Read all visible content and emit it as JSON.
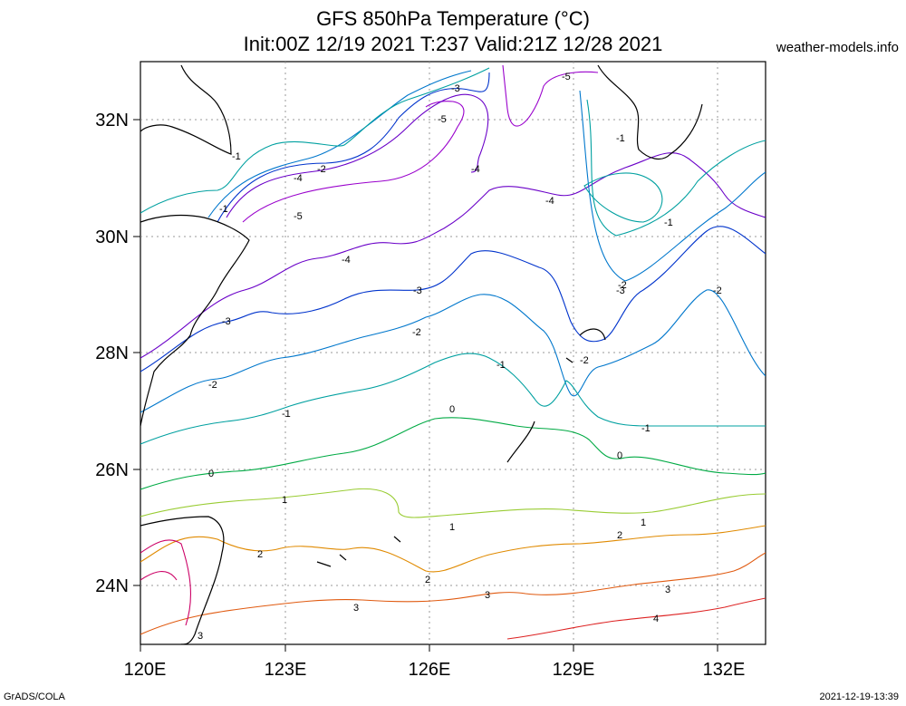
{
  "title": {
    "line1": "GFS 850hPa Temperature (°C)",
    "line2": "Init:00Z 12/19 2021 T:237 Valid:21Z 12/28 2021"
  },
  "site": "weather-models.info",
  "footer": {
    "left": "GrADS/COLA",
    "right": "2021-12-19-13:39"
  },
  "axes": {
    "x_ticks": [
      "120E",
      "123E",
      "126E",
      "129E",
      "132E"
    ],
    "y_ticks": [
      "32N",
      "30N",
      "28N",
      "26N",
      "24N"
    ]
  },
  "contours": [
    {
      "value": -5,
      "color": "#9900cc",
      "labels": [
        "-5",
        "-5",
        "-5"
      ]
    },
    {
      "value": -4,
      "color": "#6a00c8",
      "labels": [
        "-4",
        "-4",
        "-4",
        "-4"
      ]
    },
    {
      "value": -3,
      "color": "#0033cc",
      "labels": [
        "-3",
        "-3",
        "-3",
        "-3"
      ]
    },
    {
      "value": -2,
      "color": "#0077cc",
      "labels": [
        "-2",
        "-2",
        "-2",
        "-2",
        "-2",
        "-2"
      ]
    },
    {
      "value": -1,
      "color": "#00a0a0",
      "labels": [
        "-1",
        "-1",
        "-1",
        "-1",
        "-1",
        "-1",
        "-1"
      ]
    },
    {
      "value": 0,
      "color": "#00aa44",
      "labels": [
        "0",
        "0",
        "0"
      ]
    },
    {
      "value": 1,
      "color": "#99cc33",
      "labels": [
        "1",
        "1",
        "1"
      ]
    },
    {
      "value": 2,
      "color": "#e08a00",
      "labels": [
        "2",
        "2",
        "2"
      ]
    },
    {
      "value": 3,
      "color": "#e05a10",
      "labels": [
        "3",
        "3",
        "3",
        "3"
      ]
    },
    {
      "value": 4,
      "color": "#dd2222",
      "labels": [
        "4"
      ]
    }
  ]
}
